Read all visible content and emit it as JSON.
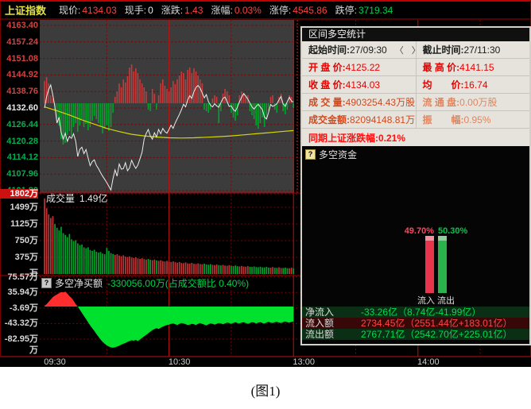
{
  "info_bar": {
    "index_name": "上证指数",
    "fields": [
      {
        "label": "现价:",
        "value": "4134.03",
        "color": "#ff4242"
      },
      {
        "label": "现手:",
        "value": "0",
        "color": "#e8e8e8"
      },
      {
        "label": "涨跌:",
        "value": "1.43",
        "color": "#ff4242"
      },
      {
        "label": "涨幅:",
        "value": "0.03%",
        "color": "#ff4242"
      },
      {
        "label": "涨停:",
        "value": "4545.86",
        "color": "#ff4242"
      },
      {
        "label": "跌停:",
        "value": "3719.34",
        "color": "#00d24b"
      }
    ]
  },
  "stats_panel": {
    "title": "区间多空统计",
    "prev_arrow": "〈",
    "next_arrow": "〉",
    "rows": [
      {
        "cells": [
          {
            "label": "起始时间:",
            "value": "27/09:30",
            "color": "black",
            "arrows": true
          },
          {
            "label": "截止时间:",
            "value": "27/11:30",
            "color": "black"
          }
        ]
      },
      {
        "cells": [
          {
            "label": "开 盘 价:",
            "value": "4125.22",
            "color": "red"
          },
          {
            "label": "最 高 价:",
            "value": "4141.15",
            "color": "red"
          }
        ]
      },
      {
        "cells": [
          {
            "label": "收 盘 价:",
            "value": "4134.03",
            "color": "red"
          },
          {
            "label": "均　　价:",
            "value": "16.74",
            "color": "red"
          }
        ]
      },
      {
        "cells": [
          {
            "label": "成 交 量:",
            "value": "4903254.43万股",
            "color": "orange"
          },
          {
            "label": "流 通 盘:",
            "value": "0.00万股",
            "color": "salmon"
          }
        ]
      },
      {
        "cells": [
          {
            "label": "成交金额:",
            "value": "82094148.81万元",
            "color": "orange"
          },
          {
            "label": "振　　幅:",
            "value": "0.95%",
            "color": "salmon"
          }
        ]
      },
      {
        "cells": [
          {
            "label": "同期上证涨跌幅:",
            "value": "0.21%",
            "color": "bright-red",
            "full": true
          }
        ]
      }
    ]
  },
  "funds_panel": {
    "title": "多空资金",
    "inflow_pct": "49.70%",
    "outflow_pct": "50.30%",
    "inflow_label": "流入",
    "outflow_label": "流出",
    "rows": [
      {
        "label": "净流入",
        "value": "-33.26亿（8.74亿-41.99亿）",
        "tone": "green"
      },
      {
        "label": "流入额",
        "value": "2734.45亿（2551.44亿+183.01亿）",
        "tone": "red"
      },
      {
        "label": "流出额",
        "value": "2767.71亿（2542.70亿+225.01亿）",
        "tone": "green"
      }
    ]
  },
  "caption": "(图1)",
  "chart_data": [
    {
      "type": "line",
      "title": "上证指数分时走势",
      "x_axis": {
        "ticks": [
          {
            "label": "09:30",
            "m": 0
          },
          {
            "label": "10:30",
            "m": 60
          },
          {
            "label": "13:00",
            "m": 120
          },
          {
            "label": "14:00",
            "m": 180
          }
        ],
        "minutes_span": 240
      },
      "y_ticks": [
        {
          "label": "4163.40",
          "color": "#d44242"
        },
        {
          "label": "4157.24",
          "color": "#d44242"
        },
        {
          "label": "4151.08",
          "color": "#d44242"
        },
        {
          "label": "4144.92",
          "color": "#d44242"
        },
        {
          "label": "4138.76",
          "color": "#d44242"
        },
        {
          "label": "4132.60",
          "color": "#e8e8e8"
        },
        {
          "label": "4126.44",
          "color": "#00b050"
        },
        {
          "label": "4120.28",
          "color": "#00b050"
        },
        {
          "label": "4114.12",
          "color": "#00b050"
        },
        {
          "label": "4107.96",
          "color": "#00b050"
        },
        {
          "label": "4101.80",
          "color": "#00b050"
        }
      ],
      "series": [
        {
          "name": "price",
          "values": [
            4132.6,
            4136.8,
            4139.5,
            4141.2,
            4137.5,
            4133.2,
            4127.0,
            4129.2,
            4123.5,
            4121.0,
            4123.2,
            4120.2,
            4122.0,
            4121.3,
            4123.0,
            4120.3,
            4114.5,
            4117.2,
            4118.0,
            4115.6,
            4117.1,
            4114.0,
            4111.1,
            4112.6,
            4113.3,
            4111.2,
            4110.0,
            4108.5,
            4107.2,
            4106.0,
            4104.8,
            4103.4,
            4102.0,
            4106.2,
            4109.5,
            4107.2,
            4111.7,
            4109.8,
            4110.0,
            4112.2,
            4109.2,
            4110.3,
            4113.1,
            4111.4,
            4110.1,
            4111.3,
            4113.7,
            4116.1,
            4121.0,
            4123.1,
            4124.6,
            4122.2,
            4121.0,
            4123.4,
            4121.8,
            4124.6,
            4123.0,
            4125.0,
            4123.8,
            4123.2,
            4124.6,
            4126.2,
            4125.0,
            4127.0,
            4128.6,
            4130.2,
            4132.0,
            4134.0,
            4133.0,
            4135.6,
            4137.2,
            4136.2,
            4138.6,
            4140.2,
            4141.0,
            4140.0,
            4138.2,
            4136.4,
            4137.6,
            4135.0,
            4133.6,
            4133.0,
            4134.2,
            4133.4,
            4132.9,
            4134.6,
            4136.2,
            4136.7,
            4135.0,
            4133.2,
            4133.4,
            4132.0,
            4131.4,
            4133.0,
            4135.0,
            4136.6,
            4138.0,
            4137.0,
            4135.9,
            4134.4,
            4133.0,
            4132.2,
            4133.2,
            4134.0,
            4133.0,
            4132.0,
            4129.2,
            4128.5,
            4131.0,
            4133.9,
            4133.2,
            4133.6,
            4134.2,
            4135.6,
            4136.9,
            4134.2,
            4133.2,
            4135.0,
            4136.6,
            4135.2,
            4134.8
          ]
        },
        {
          "name": "average",
          "points": [
            [
              0,
              4133.0
            ],
            [
              6,
              4131.6
            ],
            [
              12,
              4130.0
            ],
            [
              18,
              4128.2
            ],
            [
              24,
              4126.6
            ],
            [
              30,
              4125.0
            ],
            [
              36,
              4123.8
            ],
            [
              42,
              4122.8
            ],
            [
              48,
              4122.2
            ],
            [
              54,
              4121.8
            ],
            [
              60,
              4121.5
            ],
            [
              66,
              4121.4
            ],
            [
              72,
              4121.5
            ],
            [
              78,
              4121.7
            ],
            [
              84,
              4121.9
            ],
            [
              90,
              4122.2
            ],
            [
              96,
              4122.6
            ],
            [
              102,
              4123.0
            ],
            [
              108,
              4123.4
            ],
            [
              114,
              4123.8
            ],
            [
              120,
              4124.2
            ]
          ]
        }
      ],
      "indicator_bars": [
        28,
        33,
        25,
        10,
        6,
        -8,
        -20,
        -28,
        -45,
        -52,
        -50,
        -40,
        -35,
        -42,
        -30,
        -25,
        -36,
        -28,
        -20,
        -30,
        -26,
        -34,
        -30,
        -22,
        -16,
        -20,
        -25,
        -30,
        -38,
        -32,
        -28,
        -35,
        -30,
        -12,
        8,
        15,
        25,
        20,
        30,
        26,
        34,
        45,
        49,
        40,
        44,
        38,
        30,
        25,
        20,
        15,
        -8,
        -10,
        18,
        12,
        -8,
        10,
        25,
        30,
        22,
        18,
        15,
        20,
        28,
        24,
        30,
        35,
        40,
        38,
        30,
        42,
        45,
        38,
        44,
        40,
        35,
        30,
        25,
        -8,
        -10,
        -12,
        -8,
        6,
        10,
        8,
        -25,
        -10,
        12,
        18,
        15,
        10,
        -12,
        -18,
        -22,
        -15,
        10,
        15,
        12,
        8,
        10,
        -10,
        -15,
        -20,
        -28,
        -32,
        -25,
        -18,
        -30,
        -20,
        -10,
        8,
        10,
        -8,
        -12,
        8,
        12,
        -10,
        -14,
        -8,
        10,
        8,
        -6
      ]
    },
    {
      "type": "bar",
      "label": "成交量",
      "current": "1.49亿",
      "unit": "万",
      "y_ticks": [
        "1802万",
        "1499万",
        "1125万",
        "750万",
        "375万",
        "万"
      ],
      "values": [
        1700,
        1480,
        1340,
        1260,
        1300,
        1120,
        1040,
        980,
        1060,
        920,
        880,
        830,
        900,
        780,
        740,
        760,
        690,
        650,
        660,
        600,
        580,
        600,
        540,
        520,
        545,
        500,
        480,
        495,
        460,
        445,
        585,
        520,
        470,
        450,
        430,
        445,
        415,
        400,
        420,
        390,
        380,
        395,
        370,
        360,
        375,
        350,
        340,
        355,
        335,
        325,
        340,
        320,
        310,
        325,
        305,
        295,
        310,
        290,
        280,
        295,
        275,
        270,
        285,
        265,
        255,
        270,
        250,
        245,
        260,
        240,
        235,
        250,
        230,
        225,
        240,
        225,
        218,
        232,
        215,
        208,
        222,
        205,
        200,
        215,
        198,
        192,
        205,
        190,
        185,
        198,
        182,
        178,
        190,
        175,
        170,
        182,
        168,
        165,
        178,
        162,
        158,
        170,
        155,
        152,
        165,
        150,
        148,
        160,
        145,
        142,
        155,
        140,
        138,
        150,
        136,
        134,
        145,
        132,
        130,
        142,
        128
      ]
    },
    {
      "type": "area",
      "name": "多空净买额",
      "value_label": "-330056.00万(占成交额比 0.40%)",
      "unit": "万",
      "y_ticks": [
        "75.57万",
        "35.94万",
        "-3.69万",
        "-43.32万",
        "-82.95万",
        "万"
      ],
      "values": [
        2,
        6,
        12,
        18,
        24,
        28,
        31,
        34,
        37,
        36,
        38,
        33,
        27,
        22,
        15,
        6,
        0,
        -8,
        -16,
        -24,
        -32,
        -40,
        -48,
        -55,
        -62,
        -70,
        -77,
        -84,
        -90,
        -95,
        -99,
        -102,
        -104,
        -105,
        -104,
        -102,
        -100,
        -97,
        -95,
        -93,
        -90,
        -88,
        -86,
        -87,
        -85,
        -88,
        -84,
        -80,
        -76,
        -72,
        -68,
        -64,
        -60,
        -57,
        -55,
        -57,
        -54,
        -51,
        -49,
        -47,
        -46,
        -44,
        -43,
        -45,
        -47,
        -44,
        -42,
        -43,
        -45,
        -47,
        -46,
        -44,
        -45,
        -47,
        -44,
        -42,
        -44,
        -46,
        -48,
        -45,
        -43,
        -44,
        -46,
        -44,
        -42,
        -43,
        -45,
        -43,
        -41,
        -42,
        -44,
        -42,
        -40,
        -42,
        -43,
        -41,
        -40,
        -42,
        -44,
        -42,
        -40,
        -41,
        -43,
        -41,
        -40,
        -42,
        -43,
        -41,
        -39,
        -41,
        -42,
        -40,
        -39,
        -41,
        -42,
        -40,
        -38,
        -40,
        -41,
        -39,
        -38
      ]
    },
    {
      "type": "bar",
      "name": "多空资金",
      "categories": [
        "流入",
        "流出"
      ],
      "values": [
        49.7,
        50.3
      ],
      "unit": "%",
      "colors": [
        "#e8344c",
        "#2cb24c"
      ]
    }
  ]
}
